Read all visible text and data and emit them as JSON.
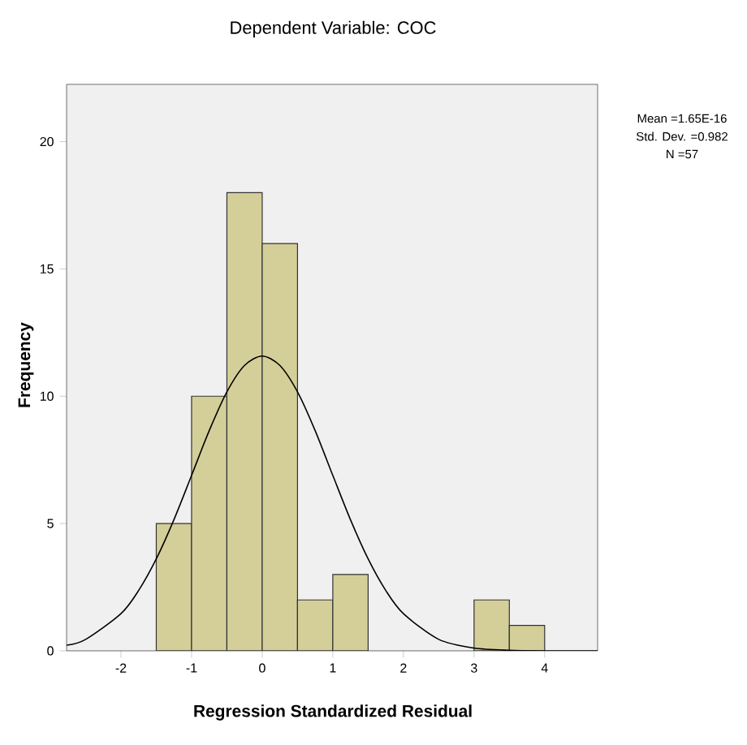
{
  "chart_data": {
    "type": "histogram",
    "title": "Dependent Variable: COC",
    "xlabel": "Regression Standardized Residual",
    "ylabel": "Frequency",
    "bins": [
      -1.5,
      -1,
      -0.5,
      0,
      0.5,
      1,
      1.5,
      2,
      2.5,
      3,
      3.5,
      4
    ],
    "values": [
      5,
      10,
      18,
      16,
      2,
      3,
      0,
      0,
      0,
      2,
      1
    ],
    "color": "#d4cf99",
    "series": [
      {
        "type": "line",
        "color": "#000000",
        "x": [
          -2.77,
          -2.5,
          -2,
          -1.75,
          -1.5,
          -1.25,
          -1,
          -0.75,
          -0.5,
          -0.25,
          0,
          0.25,
          0.5,
          0.75,
          1,
          1.25,
          1.5,
          1.75,
          2,
          2.5,
          3,
          3.5,
          4,
          4.75
        ],
        "values": [
          0.22,
          0.45,
          1.46,
          2.37,
          3.61,
          5.15,
          6.89,
          8.65,
          10.17,
          11.21,
          11.58,
          11.21,
          10.17,
          8.65,
          6.89,
          5.15,
          3.61,
          2.37,
          1.46,
          0.45,
          0.11,
          0.02,
          0,
          0
        ]
      }
    ],
    "xlim": [
      -2.77,
      4.75
    ],
    "ylim": [
      0,
      22.25
    ],
    "xticks": [
      -2,
      -1,
      0,
      1,
      2,
      3,
      4
    ],
    "yticks": [
      0,
      5,
      10,
      15,
      20
    ],
    "annotations": [
      "Mean =1.65E-16",
      "Std. Dev. =0.982",
      "N =57"
    ]
  }
}
